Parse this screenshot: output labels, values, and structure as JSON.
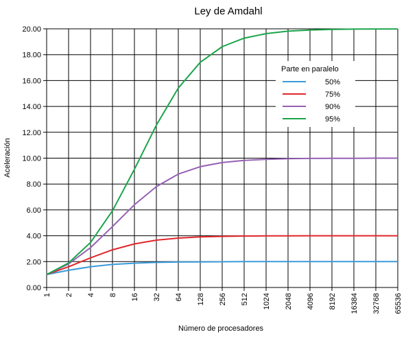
{
  "chart_data": {
    "type": "line",
    "title": "Ley de Amdahl",
    "xlabel": "Número de procesadores",
    "ylabel": "Aceleración",
    "x_scale": "log2",
    "x": [
      1,
      2,
      4,
      8,
      16,
      32,
      64,
      128,
      256,
      512,
      1024,
      2048,
      4096,
      8192,
      16384,
      32768,
      65536
    ],
    "x_tick_labels": [
      "1",
      "2",
      "4",
      "8",
      "16",
      "32",
      "64",
      "128",
      "256",
      "512",
      "1024",
      "2048",
      "4096",
      "8192",
      "16384",
      "32768",
      "65536"
    ],
    "ylim": [
      0,
      20
    ],
    "y_ticks": [
      0,
      2,
      4,
      6,
      8,
      10,
      12,
      14,
      16,
      18,
      20
    ],
    "y_tick_labels": [
      "0.00",
      "2.00",
      "4.00",
      "6.00",
      "8.00",
      "10.00",
      "12.00",
      "14.00",
      "16.00",
      "18.00",
      "20.00"
    ],
    "grid": true,
    "legend": {
      "title": "Parte en paralelo",
      "placement": "right"
    },
    "series": [
      {
        "name": "50%",
        "color": "#3a9ad9",
        "values": [
          1.0,
          1.33,
          1.6,
          1.78,
          1.88,
          1.94,
          1.97,
          1.98,
          1.99,
          2.0,
          2.0,
          2.0,
          2.0,
          2.0,
          2.0,
          2.0,
          2.0
        ]
      },
      {
        "name": "75%",
        "color": "#e0262a",
        "values": [
          1.0,
          1.6,
          2.29,
          2.91,
          3.37,
          3.66,
          3.82,
          3.91,
          3.95,
          3.98,
          3.99,
          3.99,
          4.0,
          4.0,
          4.0,
          4.0,
          4.0
        ]
      },
      {
        "name": "90%",
        "color": "#9460b4",
        "values": [
          1.0,
          1.82,
          3.08,
          4.71,
          6.4,
          7.8,
          8.77,
          9.34,
          9.66,
          9.83,
          9.91,
          9.96,
          9.98,
          9.99,
          9.99,
          10.0,
          10.0
        ]
      },
      {
        "name": "95%",
        "color": "#1aa44a",
        "values": [
          1.0,
          1.9,
          3.48,
          5.93,
          9.14,
          12.55,
          15.42,
          17.41,
          18.62,
          19.28,
          19.63,
          19.82,
          19.91,
          19.95,
          19.98,
          19.99,
          19.99
        ]
      }
    ]
  }
}
